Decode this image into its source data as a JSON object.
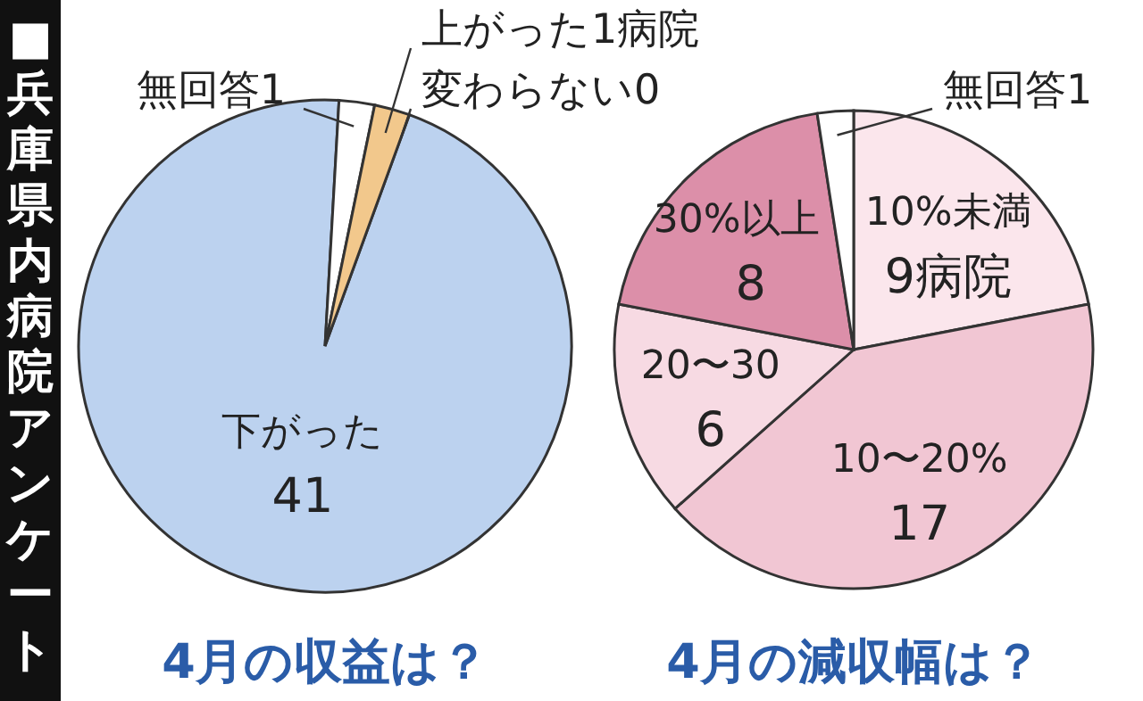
{
  "chart_data": [
    {
      "type": "pie",
      "title": "4月の収益は？",
      "annotations": [
        "■兵庫県内病院アンケート"
      ],
      "categories": [
        "下がった",
        "無回答",
        "上がった",
        "変わらない"
      ],
      "values": [
        41,
        1,
        1,
        0
      ],
      "value_labels": [
        "41",
        "1",
        "1病院",
        "0"
      ],
      "colors": [
        "#bcd2ef",
        "#ffffff",
        "#f2c88c",
        null
      ]
    },
    {
      "type": "pie",
      "title": "4月の減収幅は？",
      "categories": [
        "10%未満",
        "10〜20%",
        "20〜30",
        "30%以上",
        "無回答"
      ],
      "values": [
        9,
        17,
        6,
        8,
        1
      ],
      "value_labels": [
        "9病院",
        "17",
        "6",
        "8",
        "1"
      ],
      "colors": [
        "#fbe6ec",
        "#f1c6d3",
        "#f7dae3",
        "#dc8fa9",
        "#ffffff"
      ]
    }
  ]
}
